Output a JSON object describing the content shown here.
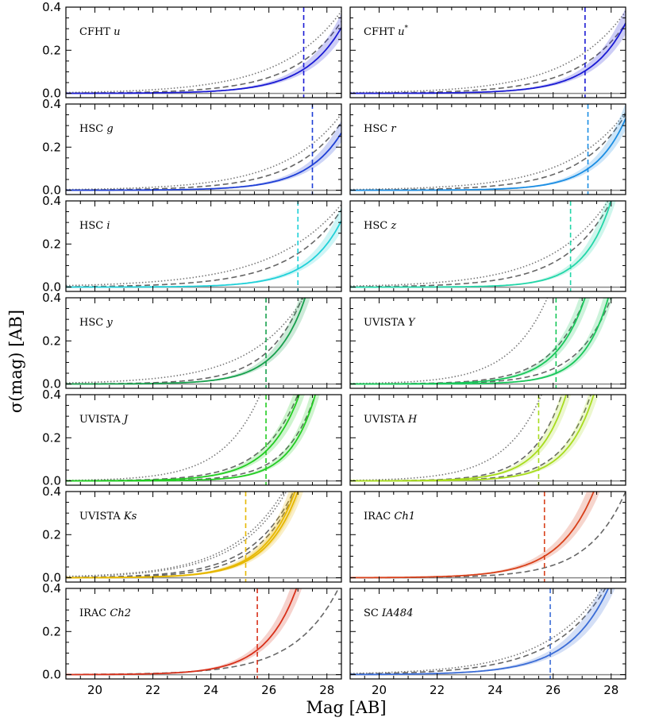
{
  "chart_data": {
    "type": "line",
    "ylabel": "σ(mag) [AB]",
    "xlabel": "Mag [AB]",
    "xlim": [
      19.0,
      28.5
    ],
    "ylim": [
      -0.02,
      0.4
    ],
    "xticks": [
      20,
      22,
      24,
      26,
      28
    ],
    "xtick_labels": [
      "20",
      "22",
      "24",
      "26",
      "28"
    ],
    "yticks": [
      0.0,
      0.2,
      0.4
    ],
    "ytick_labels": [
      "0.0",
      "0.2",
      "0.4"
    ],
    "colors": {
      "reference_line": "#888888",
      "comparison_dashed": "#666666",
      "comparison_dotted": "#777777"
    },
    "panels": [
      {
        "filter": "CFHT",
        "band": "u",
        "color": "#1a1ad4",
        "depth": 27.2,
        "curves": [
          {
            "mag_at_0.1": 27.05,
            "mag_at_0.2": 27.95
          }
        ],
        "dashed": [
          {
            "mag_at_0.1": 26.5,
            "mag_at_0.2": 27.65
          }
        ],
        "dotted": [
          {
            "mag_at_0.1": 25.7,
            "mag_at_0.2": 27.15
          }
        ]
      },
      {
        "filter": "CFHT",
        "band": "u*",
        "color": "#1a1ad4",
        "depth": 27.1,
        "curves": [
          {
            "mag_at_0.1": 27.05,
            "mag_at_0.2": 27.9
          }
        ],
        "dashed": [
          {
            "mag_at_0.1": 26.55,
            "mag_at_0.2": 27.7
          }
        ],
        "dotted": [
          {
            "mag_at_0.1": 25.8,
            "mag_at_0.2": 27.2
          }
        ]
      },
      {
        "filter": "HSC",
        "band": "g",
        "color": "#1f3fd6",
        "depth": 27.5,
        "curves": [
          {
            "mag_at_0.1": 27.3,
            "mag_at_0.2": 28.15
          }
        ],
        "dashed": [
          {
            "mag_at_0.1": 26.6,
            "mag_at_0.2": 27.75
          }
        ],
        "dotted": [
          {
            "mag_at_0.1": 25.95,
            "mag_at_0.2": 27.35
          }
        ]
      },
      {
        "filter": "HSC",
        "band": "r",
        "color": "#1a8de3",
        "depth": 27.2,
        "curves": [
          {
            "mag_at_0.1": 27.2,
            "mag_at_0.2": 27.95
          }
        ],
        "dashed": [
          {
            "mag_at_0.1": 26.5,
            "mag_at_0.2": 27.6
          }
        ],
        "dotted": [
          {
            "mag_at_0.1": 25.9,
            "mag_at_0.2": 27.3
          }
        ]
      },
      {
        "filter": "HSC",
        "band": "i",
        "color": "#20d0d8",
        "depth": 27.0,
        "curves": [
          {
            "mag_at_0.1": 27.2,
            "mag_at_0.2": 28.0
          }
        ],
        "dashed": [
          {
            "mag_at_0.1": 26.2,
            "mag_at_0.2": 27.45
          }
        ],
        "dotted": [
          {
            "mag_at_0.1": 25.3,
            "mag_at_0.2": 26.95
          }
        ]
      },
      {
        "filter": "HSC",
        "band": "z",
        "color": "#22d6a8",
        "depth": 26.6,
        "curves": [
          {
            "mag_at_0.1": 26.7,
            "mag_at_0.2": 27.35
          }
        ],
        "dashed": [
          {
            "mag_at_0.1": 25.8,
            "mag_at_0.2": 26.9
          }
        ],
        "dotted": [
          {
            "mag_at_0.1": 25.1,
            "mag_at_0.2": 26.5
          }
        ]
      },
      {
        "filter": "HSC",
        "band": "y",
        "color": "#17a04d",
        "depth": 25.9,
        "curves": [
          {
            "mag_at_0.1": 25.85,
            "mag_at_0.2": 26.55
          }
        ],
        "dashed": [
          {
            "mag_at_0.1": 25.45,
            "mag_at_0.2": 26.3
          }
        ],
        "dotted": [
          {
            "mag_at_0.1": 24.6,
            "mag_at_0.2": 25.9
          }
        ]
      },
      {
        "filter": "UVISTA",
        "band": "Y",
        "color": "#18c75a",
        "depth": 26.1,
        "curves": [
          {
            "mag_at_0.1": 25.7,
            "mag_at_0.2": 26.4
          },
          {
            "mag_at_0.1": 26.7,
            "mag_at_0.2": 27.3
          }
        ],
        "dashed": [
          {
            "mag_at_0.1": 25.5,
            "mag_at_0.2": 26.3
          },
          {
            "mag_at_0.1": 26.4,
            "mag_at_0.2": 27.2
          }
        ],
        "dotted": [
          {
            "mag_at_0.1": 24.0,
            "mag_at_0.2": 24.9
          }
        ]
      },
      {
        "filter": "UVISTA",
        "band": "J",
        "color": "#22cc22",
        "depth": 25.9,
        "curves": [
          {
            "mag_at_0.1": 25.55,
            "mag_at_0.2": 26.3
          },
          {
            "mag_at_0.1": 26.4,
            "mag_at_0.2": 27.0
          }
        ],
        "dashed": [
          {
            "mag_at_0.1": 25.3,
            "mag_at_0.2": 26.15
          },
          {
            "mag_at_0.1": 26.2,
            "mag_at_0.2": 26.9
          }
        ],
        "dotted": [
          {
            "mag_at_0.1": 23.9,
            "mag_at_0.2": 24.8
          }
        ]
      },
      {
        "filter": "UVISTA",
        "band": "H",
        "color": "#a8dc1e",
        "depth": 25.5,
        "curves": [
          {
            "mag_at_0.1": 25.15,
            "mag_at_0.2": 25.8
          },
          {
            "mag_at_0.1": 26.1,
            "mag_at_0.2": 26.75
          }
        ],
        "dashed": [
          {
            "mag_at_0.1": 24.9,
            "mag_at_0.2": 25.6
          },
          {
            "mag_at_0.1": 25.9,
            "mag_at_0.2": 26.6
          }
        ],
        "dotted": [
          {
            "mag_at_0.1": 23.8,
            "mag_at_0.2": 24.7
          }
        ]
      },
      {
        "filter": "UVISTA",
        "band": "Ks",
        "color": "#e6b800",
        "depth": 25.2,
        "curves": [
          {
            "mag_at_0.1": 25.5,
            "mag_at_0.2": 26.25
          },
          {
            "mag_at_0.1": 25.4,
            "mag_at_0.2": 26.15
          }
        ],
        "dashed": [
          {
            "mag_at_0.1": 25.1,
            "mag_at_0.2": 26.0
          },
          {
            "mag_at_0.1": 24.85,
            "mag_at_0.2": 25.85
          }
        ],
        "dotted": [
          {
            "mag_at_0.1": 24.2,
            "mag_at_0.2": 25.4
          },
          {
            "mag_at_0.1": 24.0,
            "mag_at_0.2": 25.25
          }
        ]
      },
      {
        "filter": "IRAC",
        "band": "Ch1",
        "color": "#d8401a",
        "depth": 25.7,
        "curves": [
          {
            "mag_at_0.1": 25.7,
            "mag_at_0.2": 26.55
          }
        ],
        "dashed": [
          {
            "mag_at_0.1": 26.7,
            "mag_at_0.2": 27.6
          }
        ],
        "dotted": []
      },
      {
        "filter": "IRAC",
        "band": "Ch2",
        "color": "#d8301a",
        "depth": 25.6,
        "curves": [
          {
            "mag_at_0.1": 25.45,
            "mag_at_0.2": 26.2
          }
        ],
        "dashed": [
          {
            "mag_at_0.1": 26.3,
            "mag_at_0.2": 27.35
          }
        ],
        "dotted": []
      },
      {
        "filter": "SC",
        "band": "IA484",
        "color": "#3a6cd6",
        "depth": 25.9,
        "curves": [
          {
            "mag_at_0.1": 26.0,
            "mag_at_0.2": 26.95
          }
        ],
        "dashed": [
          {
            "mag_at_0.1": 25.3,
            "mag_at_0.2": 26.55
          }
        ],
        "dotted": [
          {
            "mag_at_0.1": 24.9,
            "mag_at_0.2": 26.3
          }
        ]
      }
    ]
  }
}
